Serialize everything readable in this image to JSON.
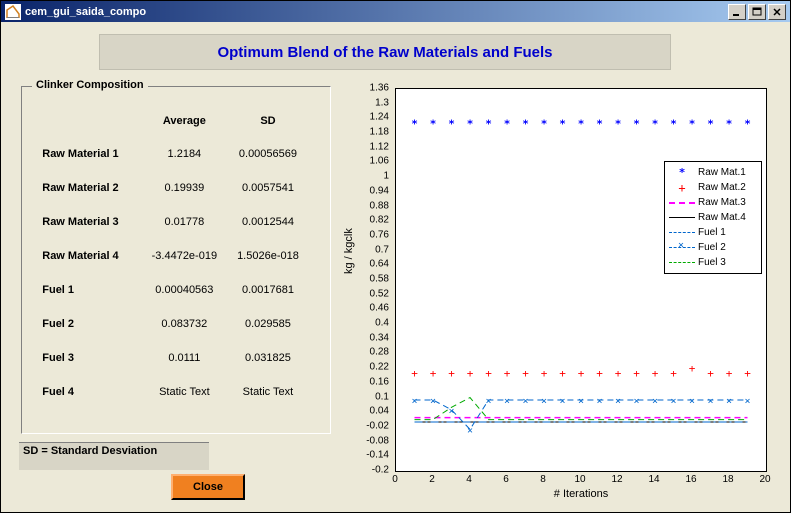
{
  "window": {
    "title": "cem_gui_saida_compo"
  },
  "banner": {
    "title": "Optimum Blend of the Raw Materials and Fuels"
  },
  "groupbox": {
    "legend": "Clinker Composition",
    "headers": {
      "c1": "",
      "c2": "Average",
      "c3": "SD"
    },
    "rows": [
      {
        "label": "Raw Material 1",
        "avg": "1.2184",
        "sd": "0.00056569"
      },
      {
        "label": "Raw Material 2",
        "avg": "0.19939",
        "sd": "0.0057541"
      },
      {
        "label": "Raw Material 3",
        "avg": "0.01778",
        "sd": "0.0012544"
      },
      {
        "label": "Raw Material 4",
        "avg": "-3.4472e-019",
        "sd": "1.5026e-018"
      },
      {
        "label": "Fuel 1",
        "avg": "0.00040563",
        "sd": "0.0017681"
      },
      {
        "label": "Fuel 2",
        "avg": "0.083732",
        "sd": "0.029585"
      },
      {
        "label": "Fuel 3",
        "avg": "0.0111",
        "sd": "0.031825"
      },
      {
        "label": "Fuel 4",
        "avg": "Static Text",
        "sd": "Static Text"
      }
    ]
  },
  "sd_note": "SD = Standard Desviation",
  "close_label": "Close",
  "chart": {
    "xlabel": "# Iterations",
    "ylabel": "kg / kgclk",
    "xlim": [
      0,
      20
    ],
    "ylim": [
      -0.2,
      1.36
    ],
    "xticks": [
      0,
      2,
      4,
      6,
      8,
      10,
      12,
      14,
      16,
      18,
      20
    ],
    "yticks": [
      -0.2,
      -0.14,
      -0.08,
      -0.02,
      0.04,
      0.1,
      0.16,
      0.22,
      0.28,
      0.34,
      0.4,
      0.46,
      0.52,
      0.58,
      0.64,
      0.7,
      0.76,
      0.82,
      0.88,
      0.94,
      1,
      1.06,
      1.12,
      1.18,
      1.24,
      1.3,
      1.36
    ],
    "series": [
      {
        "name": "Raw Mat.1",
        "type": "marker",
        "marker": "star",
        "color": "#0000ff",
        "y": [
          1.22,
          1.22,
          1.22,
          1.22,
          1.22,
          1.22,
          1.22,
          1.22,
          1.22,
          1.22,
          1.22,
          1.22,
          1.22,
          1.22,
          1.22,
          1.22,
          1.22,
          1.22,
          1.22
        ]
      },
      {
        "name": "Raw Mat.2",
        "type": "marker",
        "marker": "plus",
        "color": "#ff0000",
        "y": [
          0.2,
          0.2,
          0.2,
          0.2,
          0.2,
          0.2,
          0.2,
          0.2,
          0.2,
          0.2,
          0.2,
          0.2,
          0.2,
          0.2,
          0.2,
          0.22,
          0.2,
          0.2,
          0.2
        ]
      },
      {
        "name": "Raw Mat.3",
        "type": "line",
        "dash": "dash",
        "color": "#ff00ff",
        "width": 1.5,
        "y": [
          0.018,
          0.018,
          0.018,
          0.018,
          0.018,
          0.018,
          0.018,
          0.018,
          0.018,
          0.018,
          0.018,
          0.018,
          0.018,
          0.018,
          0.018,
          0.018,
          0.018,
          0.018,
          0.018
        ]
      },
      {
        "name": "Raw Mat.4",
        "type": "line",
        "dash": "solid",
        "color": "#000000",
        "width": 1,
        "y": [
          0,
          0,
          0,
          0,
          0,
          0,
          0,
          0,
          0,
          0,
          0,
          0,
          0,
          0,
          0,
          0,
          0,
          0,
          0
        ]
      },
      {
        "name": "Fuel 1",
        "type": "line",
        "dash": "dashdot",
        "color": "#0066cc",
        "width": 1,
        "y": [
          0,
          0,
          0,
          0,
          0,
          0,
          0,
          0,
          0,
          0,
          0,
          0,
          0,
          0,
          0,
          0,
          0,
          0,
          0
        ]
      },
      {
        "name": "Fuel 2",
        "type": "line-marker",
        "dash": "dash",
        "marker": "x",
        "color": "#0066cc",
        "width": 1,
        "y": [
          0.09,
          0.09,
          0.05,
          -0.03,
          0.09,
          0.09,
          0.09,
          0.09,
          0.09,
          0.09,
          0.09,
          0.09,
          0.09,
          0.09,
          0.09,
          0.09,
          0.09,
          0.09,
          0.09
        ]
      },
      {
        "name": "Fuel 3",
        "type": "line",
        "dash": "dash",
        "color": "#00aa00",
        "width": 1,
        "y": [
          0.01,
          0.01,
          0.06,
          0.1,
          0.01,
          0.01,
          0.01,
          0.01,
          0.01,
          0.01,
          0.01,
          0.01,
          0.01,
          0.01,
          0.01,
          0.01,
          0.01,
          0.01,
          0.01
        ]
      }
    ],
    "legend": {
      "items": [
        "Raw Mat.1",
        "Raw Mat.2",
        "Raw Mat.3",
        "Raw Mat.4",
        "Fuel 1",
        "Fuel 2",
        "Fuel 3"
      ]
    }
  }
}
